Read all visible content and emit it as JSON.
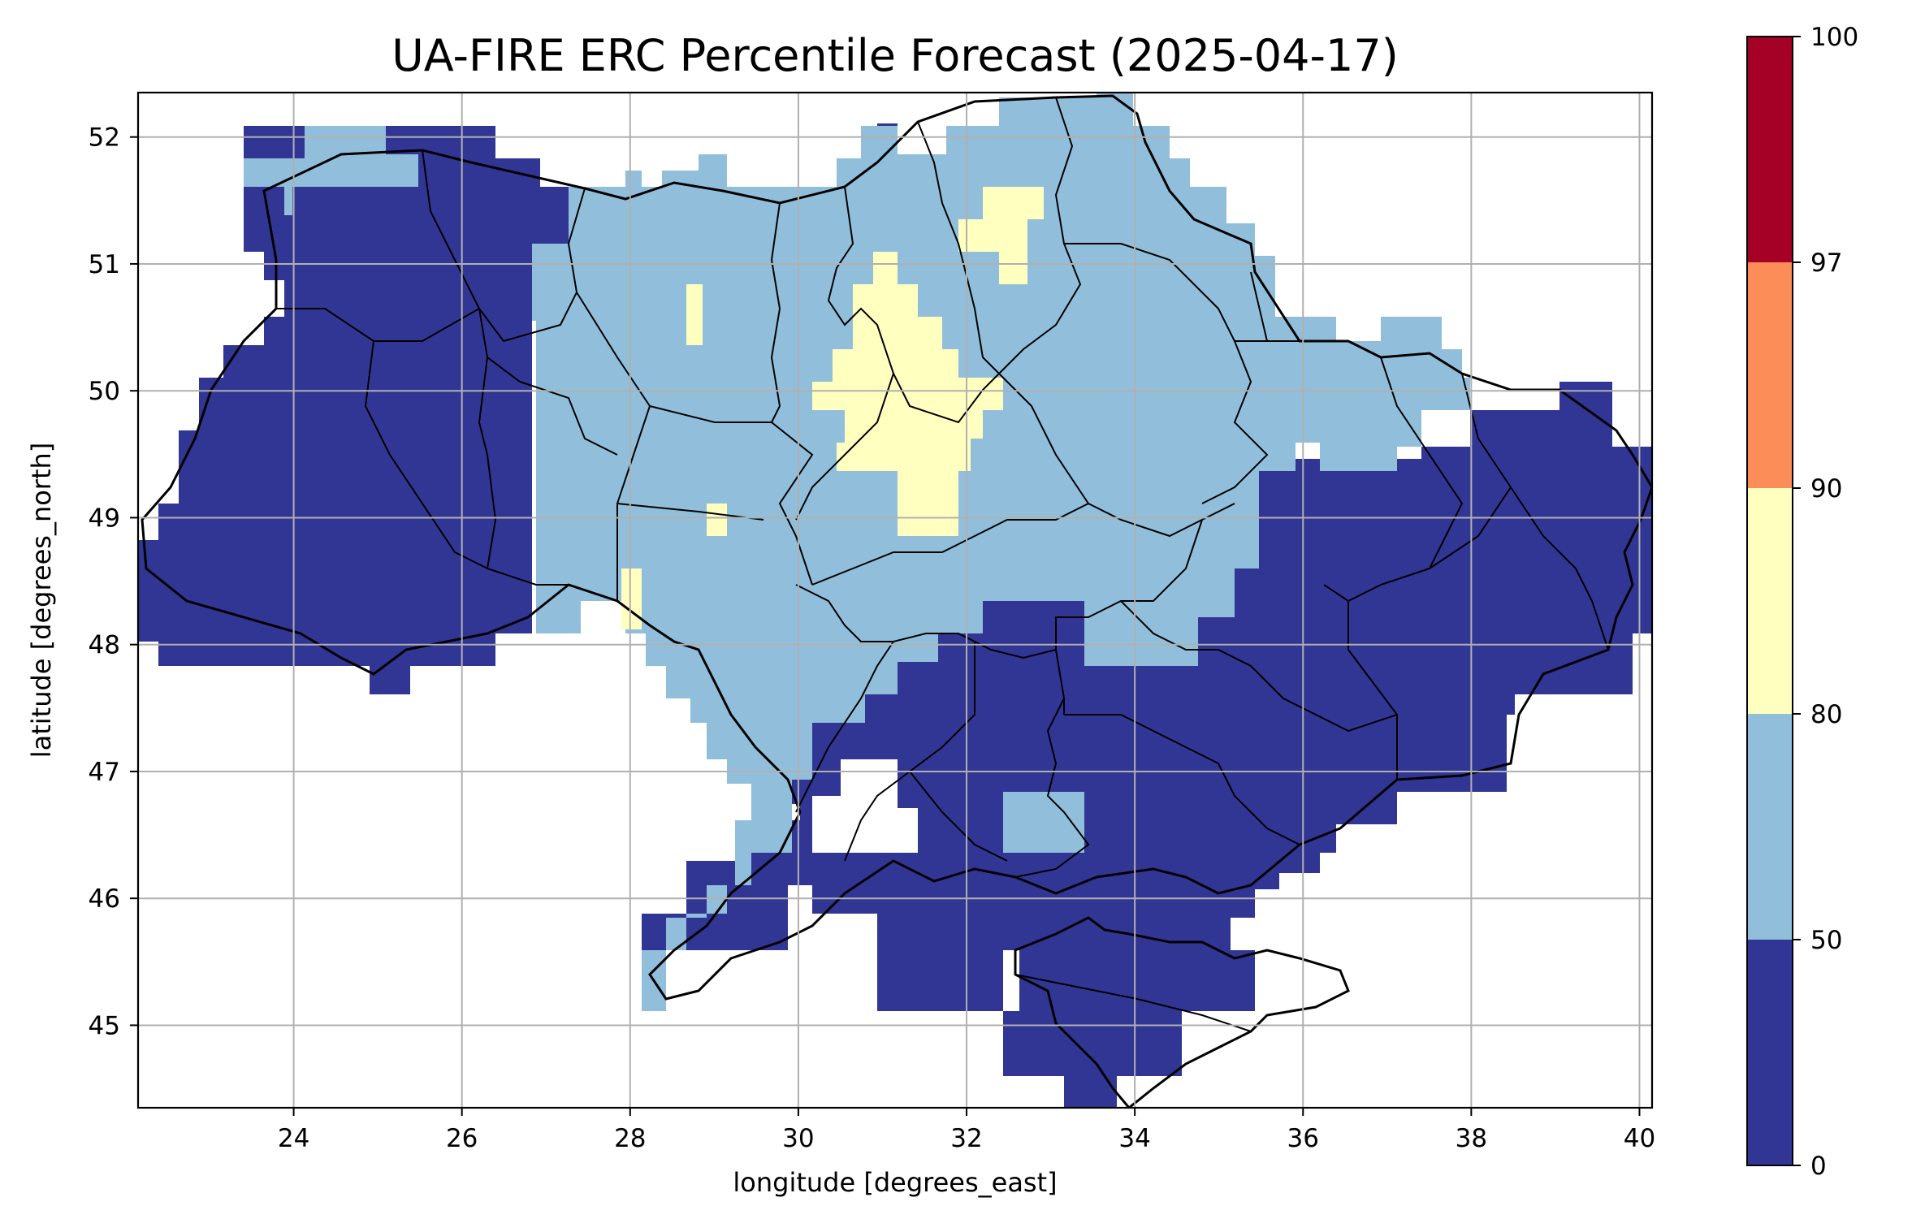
{
  "map": {
    "title": "UA-FIRE ERC Percentile Forecast (2025-04-17)",
    "xlabel": "longitude [degrees_east]",
    "ylabel": "latitude [degrees_north]",
    "lon_range": [
      22.15,
      40.15
    ],
    "lat_range": [
      44.35,
      52.35
    ],
    "lon_ticks": [
      "24",
      "26",
      "28",
      "30",
      "32",
      "34",
      "36",
      "38",
      "40"
    ],
    "lat_ticks": [
      "45",
      "46",
      "47",
      "48",
      "49",
      "50",
      "51",
      "52"
    ],
    "grid": true
  },
  "colorbar": {
    "bounds": [
      "0",
      "50",
      "80",
      "90",
      "97",
      "100"
    ],
    "colors": [
      "#313695",
      "#91bfdb",
      "#ffffbf",
      "#fc8d59",
      "#a50026"
    ]
  },
  "cell_colors": {
    "low": "#313695",
    "mid": "#91bfdb",
    "high": "#ffffbf"
  },
  "outline_color": "#000000",
  "grid_color": "#b0b0b0"
}
